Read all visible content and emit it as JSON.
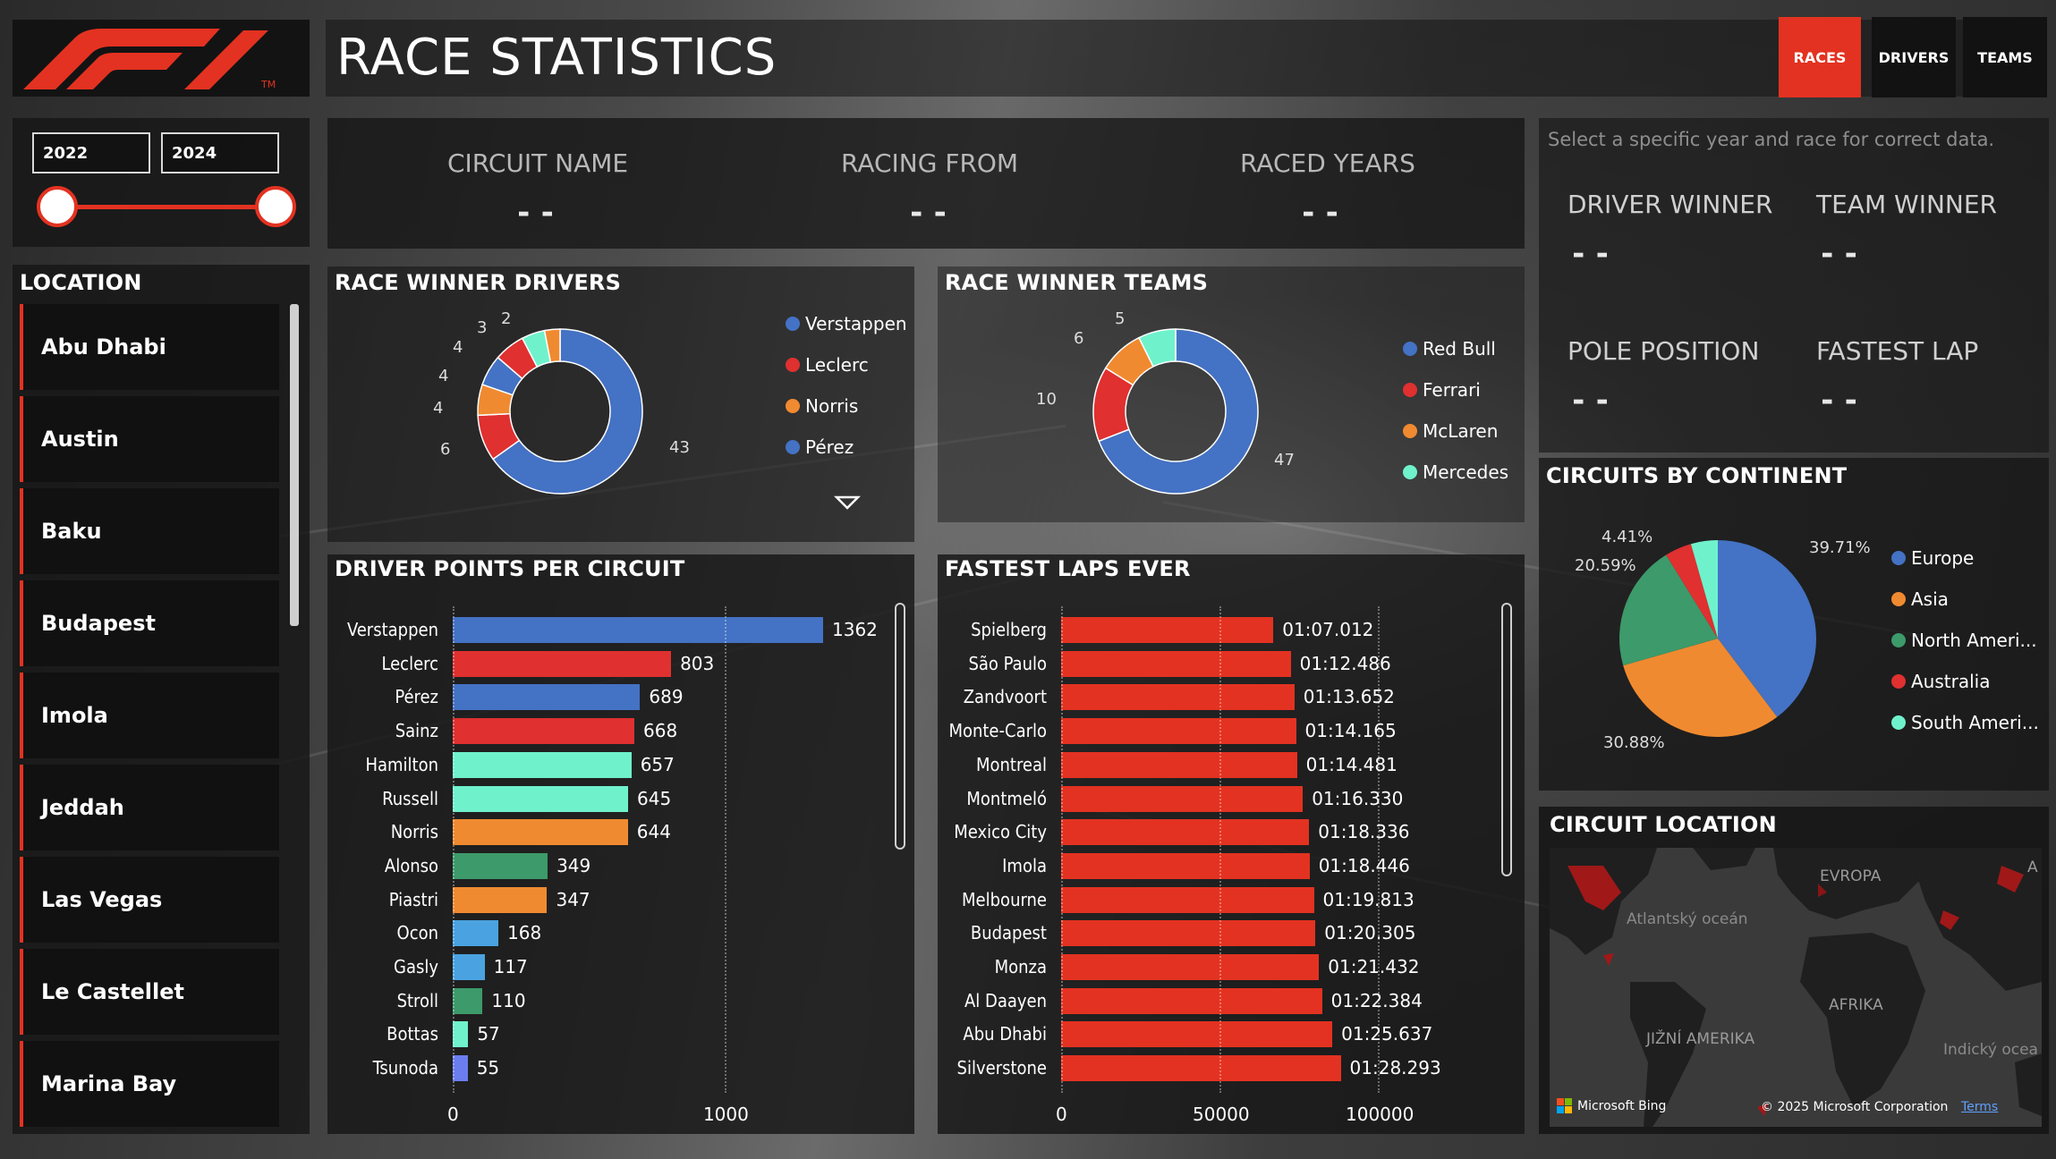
{
  "header": {
    "title": "RACE STATISTICS",
    "logo_tm": "TM"
  },
  "nav": {
    "races": "RACES",
    "drivers": "DRIVERS",
    "teams": "TEAMS"
  },
  "year_range": {
    "from": "2022",
    "to": "2024"
  },
  "location": {
    "title": "LOCATION",
    "items": [
      "Abu Dhabi",
      "Austin",
      "Baku",
      "Budapest",
      "Imola",
      "Jeddah",
      "Las Vegas",
      "Le Castellet",
      "Marina Bay"
    ]
  },
  "circuit_info": {
    "circuit_name_label": "CIRCUIT NAME",
    "circuit_name_value": "--",
    "racing_from_label": "RACING FROM",
    "racing_from_value": "--",
    "raced_years_label": "RACED YEARS",
    "raced_years_value": "--"
  },
  "winners": {
    "hint": "Select a specific year and race for correct data.",
    "driver_winner_label": "DRIVER WINNER",
    "driver_winner_value": "--",
    "team_winner_label": "TEAM WINNER",
    "team_winner_value": "--",
    "pole_position_label": "POLE POSITION",
    "pole_position_value": "--",
    "fastest_lap_label": "FASTEST LAP",
    "fastest_lap_value": "--"
  },
  "colors": {
    "accent": "#e33221",
    "blue": "#4472c4",
    "red": "#e03030",
    "orange": "#f08a30",
    "mint": "#6ff2cc",
    "green": "#3d9a6a",
    "lightblue": "#4aa3e0",
    "periwinkle": "#6a7ef0"
  },
  "chart_data": [
    {
      "type": "pie",
      "title": "RACE WINNER DRIVERS",
      "labels": [
        "Verstappen",
        "Leclerc",
        "Norris",
        "Pérez"
      ],
      "slices": [
        {
          "value": 43,
          "color": "#4472c4"
        },
        {
          "value": 6,
          "color": "#e03030"
        },
        {
          "value": 4,
          "color": "#f08a30"
        },
        {
          "value": 4,
          "color": "#4472c4"
        },
        {
          "value": 4,
          "color": "#e03030"
        },
        {
          "value": 3,
          "color": "#6ff2cc"
        },
        {
          "value": 2,
          "color": "#f08a30"
        }
      ],
      "legend": [
        {
          "name": "Verstappen",
          "color": "#4472c4"
        },
        {
          "name": "Leclerc",
          "color": "#e03030"
        },
        {
          "name": "Norris",
          "color": "#f08a30"
        },
        {
          "name": "Pérez",
          "color": "#4472c4"
        }
      ]
    },
    {
      "type": "pie",
      "title": "RACE WINNER TEAMS",
      "slices": [
        {
          "value": 47,
          "color": "#4472c4"
        },
        {
          "value": 10,
          "color": "#e03030"
        },
        {
          "value": 6,
          "color": "#f08a30"
        },
        {
          "value": 5,
          "color": "#6ff2cc"
        }
      ],
      "legend": [
        {
          "name": "Red Bull",
          "color": "#4472c4"
        },
        {
          "name": "Ferrari",
          "color": "#e03030"
        },
        {
          "name": "McLaren",
          "color": "#f08a30"
        },
        {
          "name": "Mercedes",
          "color": "#6ff2cc"
        }
      ]
    },
    {
      "type": "bar",
      "title": "DRIVER POINTS PER CIRCUIT",
      "categories": [
        "Verstappen",
        "Leclerc",
        "Pérez",
        "Sainz",
        "Hamilton",
        "Russell",
        "Norris",
        "Alonso",
        "Piastri",
        "Ocon",
        "Gasly",
        "Stroll",
        "Bottas",
        "Tsunoda"
      ],
      "values": [
        1362,
        803,
        689,
        668,
        657,
        645,
        644,
        349,
        347,
        168,
        117,
        110,
        57,
        55
      ],
      "colors": [
        "#4472c4",
        "#e03030",
        "#4472c4",
        "#e03030",
        "#6ff2cc",
        "#6ff2cc",
        "#f08a30",
        "#3d9a6a",
        "#f08a30",
        "#4aa3e0",
        "#4aa3e0",
        "#3d9a6a",
        "#6ff2cc",
        "#6a7ef0"
      ],
      "xlim": [
        0,
        1362
      ],
      "xticks": [
        "0",
        "1000"
      ]
    },
    {
      "type": "bar",
      "title": "FASTEST LAPS EVER",
      "categories": [
        "Spielberg",
        "São Paulo",
        "Zandvoort",
        "Monte-Carlo",
        "Montreal",
        "Montmeló",
        "Mexico City",
        "Imola",
        "Melbourne",
        "Budapest",
        "Monza",
        "Al Daayen",
        "Abu Dhabi",
        "Silverstone"
      ],
      "labels": [
        "01:07.012",
        "01:12.486",
        "01:13.652",
        "01:14.165",
        "01:14.481",
        "01:16.330",
        "01:18.336",
        "01:18.446",
        "01:19.813",
        "01:20.305",
        "01:21.432",
        "01:22.384",
        "01:25.637",
        "01:28.293"
      ],
      "values": [
        67012,
        72486,
        73652,
        74165,
        74481,
        76330,
        78336,
        78446,
        79813,
        80305,
        81432,
        82384,
        85637,
        88293
      ],
      "color": "#e33221",
      "xlim": [
        0,
        100000
      ],
      "xticks": [
        "0",
        "50000",
        "100000"
      ]
    },
    {
      "type": "pie",
      "title": "CIRCUITS BY CONTINENT",
      "slices": [
        {
          "name": "Europe",
          "value": 39.71,
          "color": "#4472c4"
        },
        {
          "name": "Asia",
          "value": 30.88,
          "color": "#f08a30"
        },
        {
          "name": "North Ameri...",
          "value": 20.59,
          "color": "#3d9a6a"
        },
        {
          "name": "Australia",
          "value": 4.41,
          "color": "#e03030"
        },
        {
          "name": "South Ameri...",
          "value": 4.41,
          "color": "#6ff2cc"
        }
      ],
      "data_labels": [
        "39.71%",
        "30.88%",
        "20.59%",
        "4.41%"
      ]
    }
  ],
  "map": {
    "title": "CIRCUIT LOCATION",
    "labels": {
      "europe": "EVROPA",
      "atlantic": "Atlantský oceán",
      "africa": "AFRIKA",
      "south_america": "JIŽNÍ AMERIKA",
      "indian": "Indický ocea",
      "asia_edge": "A"
    },
    "bing": "Microsoft Bing",
    "copyright": "© 2025 Microsoft Corporation",
    "terms": "Terms"
  }
}
